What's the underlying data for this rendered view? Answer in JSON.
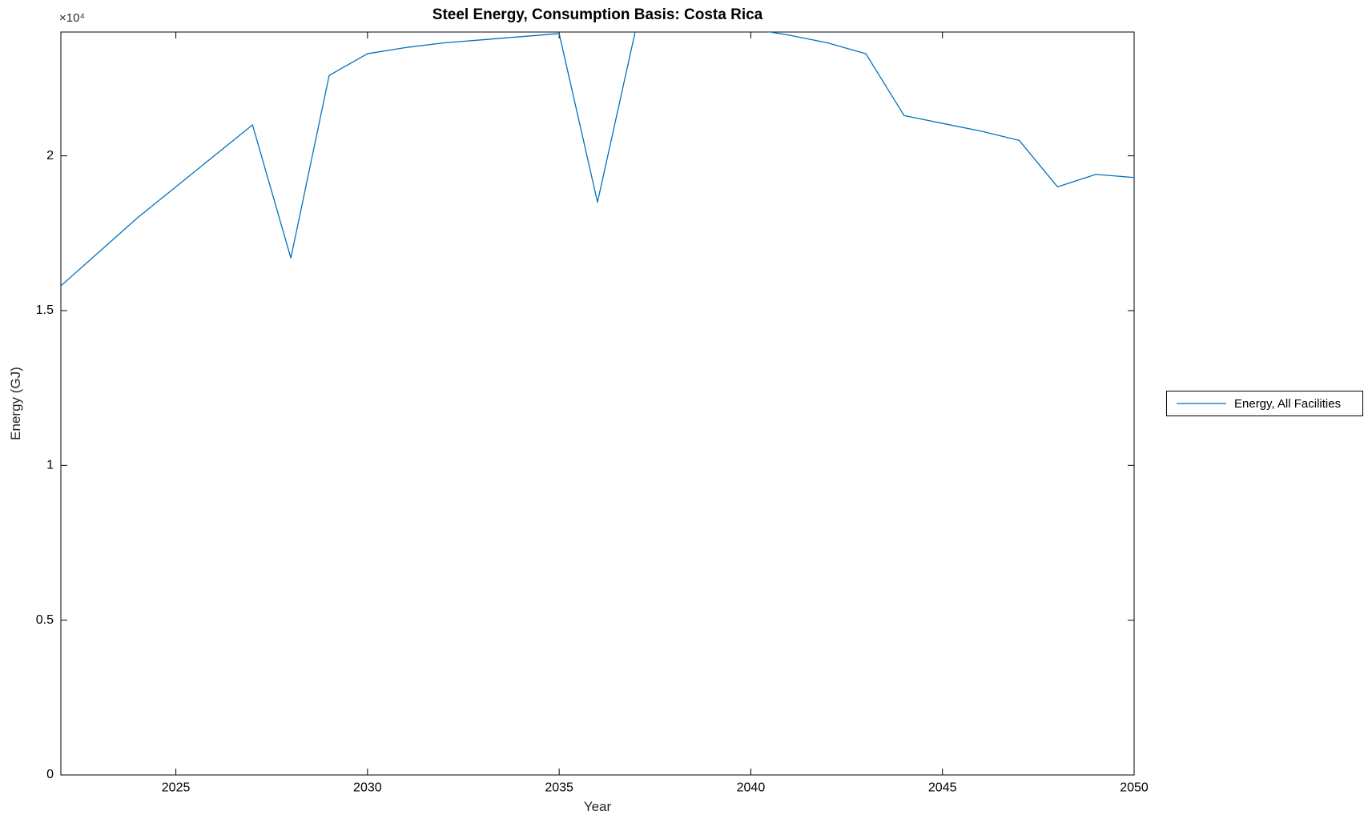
{
  "figure": {
    "background": "#ffffff",
    "axis_color": "#000000"
  },
  "chart_data": {
    "type": "line",
    "title": "Steel Energy, Consumption Basis: Costa Rica",
    "xlabel": "Year",
    "ylabel": "Energy (GJ)",
    "y_axis_multiplier": "×10⁴",
    "xlim": [
      2022,
      2050
    ],
    "ylim": [
      0,
      24000
    ],
    "xticks": [
      2025,
      2030,
      2035,
      2040,
      2045,
      2050
    ],
    "xtick_labels": [
      "2025",
      "2030",
      "2035",
      "2040",
      "2045",
      "2050"
    ],
    "yticks": [
      0,
      5000,
      10000,
      15000,
      20000
    ],
    "ytick_labels": [
      "0",
      "0.5",
      "1",
      "1.5",
      "2"
    ],
    "grid": false,
    "legend": {
      "position": "right-outside",
      "entries": [
        {
          "label": "Energy, All Facilities",
          "color": "#0072BD"
        }
      ]
    },
    "series": [
      {
        "name": "Energy, All Facilities",
        "color": "#0072BD",
        "x": [
          2022,
          2023,
          2024,
          2025,
          2026,
          2027,
          2028,
          2029,
          2030,
          2031,
          2032,
          2033,
          2034,
          2035,
          2036,
          2037,
          2038,
          2039,
          2040,
          2041,
          2042,
          2043,
          2044,
          2045,
          2046,
          2047,
          2048,
          2049,
          2050
        ],
        "y": [
          15800,
          16900,
          18000,
          19000,
          20000,
          21000,
          16700,
          22600,
          23300,
          23500,
          23650,
          23750,
          23850,
          23950,
          18500,
          24100,
          24100,
          24100,
          24100,
          23900,
          23650,
          23300,
          21300,
          21050,
          20800,
          20500,
          19000,
          19400,
          19300
        ]
      }
    ]
  }
}
